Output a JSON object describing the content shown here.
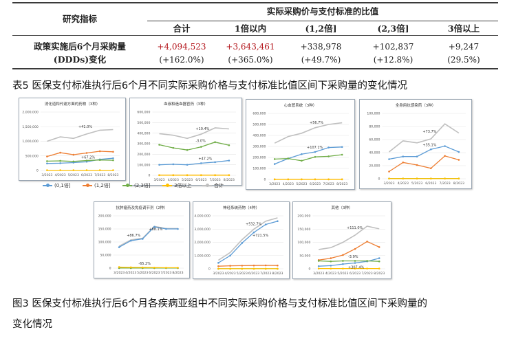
{
  "table": {
    "header_indicator": "研究指标",
    "header_group": "实际采购价与支付标准的比值",
    "columns": [
      "合计",
      "1倍以内",
      "(1,2倍]",
      "(2,3倍]",
      "3倍以上"
    ],
    "row_label_1": "政策实施后6个月采购量",
    "row_label_2": "(DDDs)变化",
    "values": [
      "+4,094,523",
      "+3,643,461",
      "+338,978",
      "+102,837",
      "+9,247"
    ],
    "changes": [
      "(+162.0%)",
      "(+365.0%)",
      "(+49.7%)",
      "(+12.8%)",
      "(29.5%)"
    ],
    "red_color": "#b3151b"
  },
  "caption_table": "表5 医保支付标准执行后6个月不同实际采购价格与支付标准比值区间下采购量的变化情况",
  "caption_figure_line1": "图3 医保支付标准执行后6个月各疾病亚组中不同实际采购价格与支付标准比值区间下采购量的",
  "caption_figure_line2": "变化情况",
  "legend": [
    {
      "name": "(0,1倍]",
      "color": "#5b9bd5"
    },
    {
      "name": "(1,2倍]",
      "color": "#ed7d31"
    },
    {
      "name": "(2,3倍]",
      "color": "#70ad47"
    },
    {
      "name": "3倍以上",
      "color": "#ffc000"
    },
    {
      "name": "合计",
      "color": "#bfbfbf"
    }
  ],
  "chart_data": [
    {
      "type": "line",
      "title": "消化道和代谢方面的药物（3种）",
      "x": [
        "3/2023",
        "4/2023",
        "5/2023",
        "6/2023",
        "7/2023",
        "8/2023"
      ],
      "y_ticks": [
        "0",
        "500,000",
        "1,000,000",
        "1,500,000",
        "2,000,000"
      ],
      "ylim": [
        0,
        2000000
      ],
      "series": [
        {
          "name": "(0,1倍]",
          "values": [
            240000,
            250000,
            270000,
            300000,
            380000,
            420000
          ]
        },
        {
          "name": "(1,2倍]",
          "values": [
            480000,
            610000,
            540000,
            600000,
            660000,
            640000
          ]
        },
        {
          "name": "(2,3倍]",
          "values": [
            320000,
            330000,
            310000,
            340000,
            360000,
            350000
          ]
        },
        {
          "name": "3倍以上",
          "values": [
            10000,
            10000,
            10000,
            10000,
            10000,
            10000
          ]
        },
        {
          "name": "合计",
          "values": [
            1000000,
            1150000,
            1100000,
            1250000,
            1380000,
            1400000
          ]
        }
      ],
      "annotations": [
        {
          "text": "+41.0%",
          "red": false
        },
        {
          "text": "+67.2%",
          "red": false
        }
      ]
    },
    {
      "type": "line",
      "title": "血液和造血器官药（3种）",
      "x": [
        "3/2023",
        "4/2023",
        "5/2023",
        "6/2023",
        "7/2023",
        "8/2023"
      ],
      "y_ticks": [
        "0",
        "100,000",
        "200,000",
        "300,000",
        "400,000",
        "500,000",
        "600,000"
      ],
      "ylim": [
        0,
        600000
      ],
      "series": [
        {
          "name": "(0,1倍]",
          "values": [
            100000,
            105000,
            100000,
            115000,
            125000,
            140000
          ]
        },
        {
          "name": "(1,2倍]",
          "values": [
            2000,
            2000,
            2000,
            2000,
            2000,
            2000
          ]
        },
        {
          "name": "(2,3倍]",
          "values": [
            290000,
            260000,
            240000,
            270000,
            315000,
            285000
          ]
        },
        {
          "name": "3倍以上",
          "values": [
            1000,
            1000,
            1000,
            1000,
            1000,
            1000
          ]
        },
        {
          "name": "合计",
          "values": [
            395000,
            380000,
            350000,
            390000,
            450000,
            440000
          ]
        }
      ],
      "annotations": [
        {
          "text": "+10.4%",
          "red": false
        },
        {
          "text": "-3.0%",
          "red": true
        },
        {
          "text": "+47.2%",
          "red": false
        }
      ]
    },
    {
      "type": "line",
      "title": "心血管系统（3种）",
      "x": [
        "3/2023",
        "4/2023",
        "5/2023",
        "6/2023",
        "7/2023",
        "8/2023"
      ],
      "y_ticks": [
        "0",
        "100,000",
        "200,000",
        "300,000",
        "400,000",
        "500,000",
        "600,000"
      ],
      "ylim": [
        0,
        600000
      ],
      "series": [
        {
          "name": "(0,1倍]",
          "values": [
            140000,
            190000,
            230000,
            250000,
            290000,
            295000
          ]
        },
        {
          "name": "(1,2倍]",
          "values": [
            1000,
            1000,
            1000,
            1000,
            1000,
            1000
          ]
        },
        {
          "name": "(2,3倍]",
          "values": [
            185000,
            190000,
            170000,
            205000,
            210000,
            225000
          ]
        },
        {
          "name": "3倍以上",
          "values": [
            1000,
            1000,
            1000,
            1000,
            1000,
            1000
          ]
        },
        {
          "name": "合计",
          "values": [
            330000,
            390000,
            420000,
            470000,
            500000,
            515000
          ]
        }
      ],
      "annotations": [
        {
          "text": "+56.7%",
          "red": false
        },
        {
          "text": "+107.1%",
          "red": false
        }
      ]
    },
    {
      "type": "line",
      "title": "全身用抗感染药（3种）",
      "x": [
        "3/2023",
        "4/2023",
        "5/2023",
        "6/2023",
        "7/2023",
        "8/2023"
      ],
      "y_ticks": [
        "0",
        "20,000",
        "40,000",
        "60,000",
        "80,000",
        "100,000"
      ],
      "ylim": [
        0,
        100000
      ],
      "series": [
        {
          "name": "(0,1倍]",
          "values": [
            30000,
            34000,
            34000,
            45000,
            50000,
            41000
          ]
        },
        {
          "name": "(1,2倍]",
          "values": [
            11000,
            25000,
            21000,
            16000,
            35000,
            29000
          ]
        },
        {
          "name": "(2,3倍]",
          "values": [
            300,
            300,
            300,
            300,
            300,
            300
          ]
        },
        {
          "name": "3倍以上",
          "values": [
            200,
            200,
            200,
            200,
            200,
            200
          ]
        },
        {
          "name": "合计",
          "values": [
            41000,
            58000,
            55000,
            61000,
            84000,
            70000
          ]
        }
      ],
      "annotations": [
        {
          "text": "+73.7%",
          "red": false
        },
        {
          "text": "+35.1%",
          "red": false
        }
      ]
    },
    {
      "type": "line",
      "title": "抗肿瘤药及免疫调节剂（2种）",
      "x": [
        "3/2023",
        "4/2023",
        "5/2023",
        "6/2023",
        "7/2023",
        "8/2023"
      ],
      "y_ticks": [
        "0",
        "50,000",
        "100,000",
        "150,000",
        "200,000"
      ],
      "ylim": [
        0,
        200000
      ],
      "series": [
        {
          "name": "(0,1倍]",
          "values": [
            80000,
            105000,
            112000,
            158000,
            150000,
            150000
          ]
        },
        {
          "name": "(1,2倍]",
          "values": [
            300,
            300,
            300,
            300,
            300,
            300
          ]
        },
        {
          "name": "(2,3倍]",
          "values": [
            200,
            200,
            200,
            200,
            200,
            200
          ]
        },
        {
          "name": "3倍以上",
          "values": [
            4000,
            3000,
            2500,
            2000,
            1500,
            1500
          ]
        },
        {
          "name": "合计",
          "values": [
            84000,
            108000,
            114500,
            160000,
            151500,
            151500
          ]
        }
      ],
      "annotations": [
        {
          "text": "+86.7%",
          "red": false
        },
        {
          "text": "+88.1%",
          "red": false
        },
        {
          "text": "-65.2%",
          "red": true
        }
      ]
    },
    {
      "type": "line",
      "title": "神经系统药物（4种）",
      "x": [
        "3/2023",
        "4/2023",
        "5/2023",
        "6/2023",
        "7/2023",
        "8/2023"
      ],
      "y_ticks": [
        "0",
        "1,000,000",
        "2,000,000",
        "3,000,000",
        "4,000,000"
      ],
      "ylim": [
        0,
        4000000
      ],
      "series": [
        {
          "name": "(0,1倍]",
          "values": [
            450000,
            1000000,
            1950000,
            2750000,
            3350000,
            3600000
          ]
        },
        {
          "name": "(1,2倍]",
          "values": [
            200000,
            230000,
            240000,
            250000,
            260000,
            250000
          ]
        },
        {
          "name": "(2,3倍]",
          "values": [
            5000,
            5000,
            5000,
            5000,
            5000,
            5000
          ]
        },
        {
          "name": "3倍以上",
          "values": [
            3000,
            3000,
            3000,
            3000,
            3000,
            3000
          ]
        },
        {
          "name": "合计",
          "values": [
            650000,
            1230000,
            2200000,
            3000000,
            3600000,
            3850000
          ]
        }
      ],
      "annotations": [
        {
          "text": "+532.7%",
          "red": false
        },
        {
          "text": "+721.5%",
          "red": false
        }
      ]
    },
    {
      "type": "line",
      "title": "其他（3种）",
      "x": [
        "3/2023",
        "4/2023",
        "5/2023",
        "6/2023",
        "7/2023",
        "8/2023"
      ],
      "y_ticks": [
        "0",
        "50,000",
        "100,000",
        "150,000",
        "200,000"
      ],
      "ylim": [
        0,
        200000
      ],
      "series": [
        {
          "name": "(0,1倍]",
          "values": [
            10000,
            12000,
            18000,
            22000,
            28000,
            40000
          ]
        },
        {
          "name": "(1,2倍]",
          "values": [
            33000,
            40000,
            52000,
            75000,
            103000,
            82000
          ]
        },
        {
          "name": "(2,3倍]",
          "values": [
            30000,
            28000,
            30000,
            30000,
            30000,
            28000
          ]
        },
        {
          "name": "3倍以上",
          "values": [
            1000,
            1000,
            1000,
            1000,
            1000,
            1000
          ]
        },
        {
          "name": "合计",
          "values": [
            73000,
            80000,
            100000,
            127000,
            161000,
            151000
          ]
        }
      ],
      "annotations": [
        {
          "text": "+111.0%",
          "red": false
        },
        {
          "text": "-3.9%",
          "red": true
        },
        {
          "text": "+307.4%",
          "red": false
        }
      ]
    }
  ]
}
